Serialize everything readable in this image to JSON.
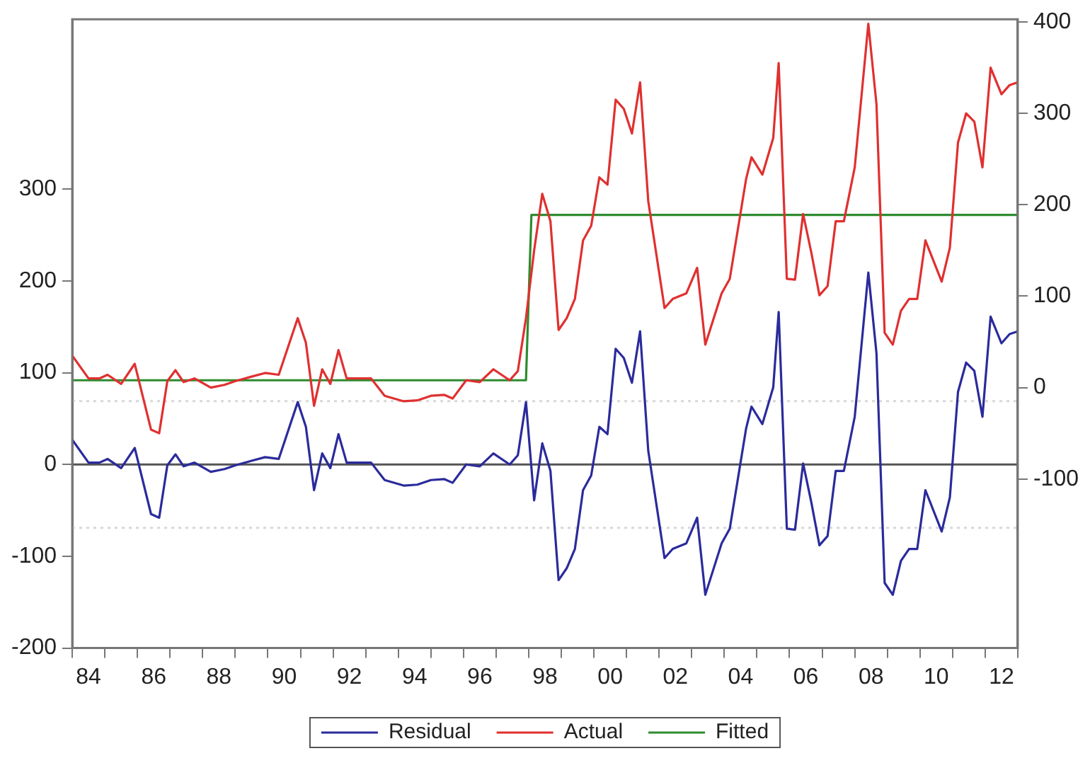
{
  "chart_data": {
    "type": "line",
    "xlim": [
      "1984-01",
      "2013-01"
    ],
    "xticks": [
      {
        "value": "1984-01",
        "label": null
      },
      {
        "value": "1984-07",
        "label": "84"
      },
      {
        "value": "1985-01",
        "label": null
      },
      {
        "value": "1986-01",
        "label": null
      },
      {
        "value": "1986-07",
        "label": "86"
      },
      {
        "value": "1987-01",
        "label": null
      },
      {
        "value": "1988-01",
        "label": null
      },
      {
        "value": "1988-07",
        "label": "88"
      },
      {
        "value": "1989-01",
        "label": null
      },
      {
        "value": "1990-01",
        "label": null
      },
      {
        "value": "1990-07",
        "label": "90"
      },
      {
        "value": "1991-01",
        "label": null
      },
      {
        "value": "1992-01",
        "label": null
      },
      {
        "value": "1992-07",
        "label": "92"
      },
      {
        "value": "1993-01",
        "label": null
      },
      {
        "value": "1994-01",
        "label": null
      },
      {
        "value": "1994-07",
        "label": "94"
      },
      {
        "value": "1995-01",
        "label": null
      },
      {
        "value": "1996-01",
        "label": null
      },
      {
        "value": "1996-07",
        "label": "96"
      },
      {
        "value": "1997-01",
        "label": null
      },
      {
        "value": "1998-01",
        "label": null
      },
      {
        "value": "1998-07",
        "label": "98"
      },
      {
        "value": "1999-01",
        "label": null
      },
      {
        "value": "2000-01",
        "label": null
      },
      {
        "value": "2000-07",
        "label": "00"
      },
      {
        "value": "2001-01",
        "label": null
      },
      {
        "value": "2002-01",
        "label": null
      },
      {
        "value": "2002-07",
        "label": "02"
      },
      {
        "value": "2003-01",
        "label": null
      },
      {
        "value": "2004-01",
        "label": null
      },
      {
        "value": "2004-07",
        "label": "04"
      },
      {
        "value": "2005-01",
        "label": null
      },
      {
        "value": "2006-01",
        "label": null
      },
      {
        "value": "2006-07",
        "label": "06"
      },
      {
        "value": "2007-01",
        "label": null
      },
      {
        "value": "2008-01",
        "label": null
      },
      {
        "value": "2008-07",
        "label": "08"
      },
      {
        "value": "2009-01",
        "label": null
      },
      {
        "value": "2010-01",
        "label": null
      },
      {
        "value": "2010-07",
        "label": "10"
      },
      {
        "value": "2011-01",
        "label": null
      },
      {
        "value": "2012-01",
        "label": null
      },
      {
        "value": "2012-07",
        "label": "12"
      },
      {
        "value": "2013-01",
        "label": null
      }
    ],
    "ylim": [
      -200,
      485
    ],
    "yticks": [
      -200,
      -100,
      0,
      100,
      200,
      300
    ],
    "y2lim": [
      -285,
      403
    ],
    "y2ticks": [
      -100,
      0,
      100,
      200,
      300,
      400
    ],
    "grid": false,
    "legend": "bottom",
    "marker": "none",
    "line_style": "solid",
    "ref_lines": [
      {
        "axis": "y",
        "value": 0,
        "color": "#555555",
        "line_style": "solid"
      },
      {
        "axis": "y",
        "value": 69,
        "color": "#d8d8d8",
        "line_style": "dotted"
      },
      {
        "axis": "y",
        "value": -69,
        "color": "#d8d8d8",
        "line_style": "dotted"
      }
    ],
    "series": [
      {
        "name": "Residual",
        "color": "#2b2b9c",
        "axis": "y",
        "x": [
          "1984-01",
          "1984-07",
          "1984-11",
          "1985-02",
          "1985-07",
          "1985-12",
          "1986-06",
          "1986-09",
          "1986-12",
          "1987-03",
          "1987-06",
          "1987-10",
          "1988-04",
          "1988-09",
          "1989-01",
          "1989-07",
          "1989-12",
          "1990-05",
          "1990-12",
          "1991-03",
          "1991-06",
          "1991-09",
          "1991-12",
          "1992-03",
          "1992-06",
          "1993-03",
          "1993-08",
          "1994-03",
          "1994-08",
          "1995-01",
          "1995-06",
          "1995-09",
          "1996-02",
          "1996-07",
          "1996-12",
          "1997-06",
          "1997-09",
          "1997-12",
          "1998-03",
          "1998-06",
          "1998-09",
          "1998-12",
          "1999-03",
          "1999-06",
          "1999-09",
          "1999-12",
          "2000-03",
          "2000-06",
          "2000-09",
          "2000-12",
          "2001-03",
          "2001-06",
          "2001-09",
          "2002-03",
          "2002-06",
          "2002-11",
          "2003-03",
          "2003-06",
          "2003-12",
          "2004-03",
          "2004-09",
          "2004-11",
          "2005-03",
          "2005-07",
          "2005-09",
          "2005-12",
          "2006-03",
          "2006-06",
          "2006-09",
          "2006-12",
          "2007-03",
          "2007-06",
          "2007-09",
          "2008-01",
          "2008-06",
          "2008-09",
          "2008-12",
          "2009-03",
          "2009-06",
          "2009-09",
          "2009-12",
          "2010-03",
          "2010-09",
          "2010-12",
          "2011-03",
          "2011-06",
          "2011-09",
          "2011-12",
          "2012-03",
          "2012-07",
          "2012-10",
          "2013-01"
        ],
        "values": [
          27,
          2,
          2,
          6,
          -4,
          18,
          -54,
          -58,
          -1,
          11,
          -2,
          2,
          -8,
          -5,
          -1,
          4,
          8,
          6,
          68,
          41,
          -28,
          12,
          -4,
          33,
          2,
          2,
          -17,
          -23,
          -22,
          -17,
          -16,
          -20,
          0,
          -2,
          12,
          0,
          10,
          68,
          -39,
          23,
          -7,
          -126,
          -113,
          -92,
          -28,
          -12,
          41,
          33,
          126,
          116,
          89,
          145,
          15,
          -102,
          -92,
          -86,
          -58,
          -142,
          -86,
          -70,
          39,
          63,
          44,
          84,
          166,
          -70,
          -71,
          1,
          -41,
          -88,
          -78,
          -7,
          -7,
          52,
          209,
          121,
          -129,
          -142,
          -105,
          -92,
          -92,
          -28,
          -73,
          -36,
          79,
          111,
          102,
          52,
          161,
          132,
          142,
          145
        ]
      },
      {
        "name": "Actual",
        "color": "#e03030",
        "axis": "y2",
        "x": [
          "1984-01",
          "1984-07",
          "1984-11",
          "1985-02",
          "1985-07",
          "1985-12",
          "1986-06",
          "1986-09",
          "1986-12",
          "1987-03",
          "1987-06",
          "1987-10",
          "1988-04",
          "1988-09",
          "1989-01",
          "1989-07",
          "1989-12",
          "1990-05",
          "1990-12",
          "1991-03",
          "1991-06",
          "1991-09",
          "1991-12",
          "1992-03",
          "1992-06",
          "1993-03",
          "1993-08",
          "1994-03",
          "1994-08",
          "1995-01",
          "1995-06",
          "1995-09",
          "1996-02",
          "1996-07",
          "1996-12",
          "1997-06",
          "1997-09",
          "1997-12",
          "1998-03",
          "1998-06",
          "1998-09",
          "1998-12",
          "1999-03",
          "1999-06",
          "1999-09",
          "1999-12",
          "2000-03",
          "2000-06",
          "2000-09",
          "2000-12",
          "2001-03",
          "2001-06",
          "2001-09",
          "2002-03",
          "2002-06",
          "2002-11",
          "2003-03",
          "2003-06",
          "2003-12",
          "2004-03",
          "2004-09",
          "2004-11",
          "2005-03",
          "2005-07",
          "2005-09",
          "2005-12",
          "2006-03",
          "2006-06",
          "2006-09",
          "2006-12",
          "2007-03",
          "2007-06",
          "2007-09",
          "2008-01",
          "2008-06",
          "2008-09",
          "2008-12",
          "2009-03",
          "2009-06",
          "2009-09",
          "2009-12",
          "2010-03",
          "2010-09",
          "2010-12",
          "2011-03",
          "2011-06",
          "2011-09",
          "2011-12",
          "2012-03",
          "2012-07",
          "2012-10",
          "2013-01"
        ],
        "values": [
          35,
          10,
          10,
          14,
          4,
          26,
          -46,
          -50,
          7,
          19,
          6,
          10,
          0,
          3,
          7,
          12,
          16,
          14,
          76,
          49,
          -20,
          20,
          4,
          41,
          10,
          10,
          -9,
          -15,
          -14,
          -9,
          -8,
          -12,
          8,
          6,
          20,
          8,
          18,
          76,
          150,
          212,
          182,
          63,
          76,
          97,
          161,
          177,
          230,
          222,
          315,
          305,
          278,
          334,
          204,
          87,
          97,
          103,
          131,
          47,
          103,
          119,
          228,
          252,
          233,
          273,
          355,
          119,
          118,
          190,
          148,
          101,
          111,
          182,
          182,
          241,
          398,
          310,
          60,
          47,
          84,
          97,
          97,
          161,
          116,
          153,
          268,
          300,
          291,
          241,
          350,
          321,
          331,
          334
        ]
      },
      {
        "name": "Fitted",
        "color": "#2e8b2e",
        "axis": "y2",
        "x": [
          "1984-01",
          "1997-12",
          "1998-02",
          "2013-01"
        ],
        "values": [
          8,
          8,
          189,
          189
        ]
      }
    ]
  }
}
